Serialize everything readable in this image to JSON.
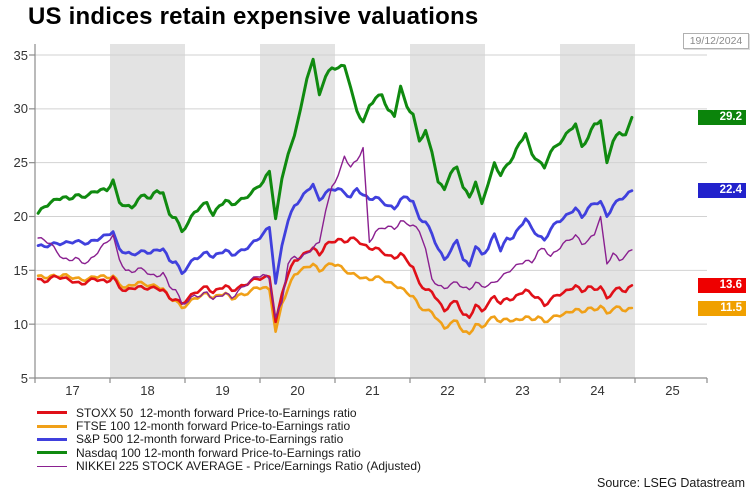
{
  "title": "US indices retain expensive valuations",
  "date_badge": "19/12/2024",
  "source": "Source: LSEG Datastream",
  "colors": {
    "band_fill": "#e3e3e3",
    "gridline": "#d2d2d2",
    "axis": "#8c8c8c",
    "title_text": "#000000",
    "tick_text": "#333333"
  },
  "legend": {
    "items": [
      {
        "label": "STOXX 50  12-month forward Price-to-Earnings ratio"
      },
      {
        "label": "FTSE 100 12-month forward Price-to-Earnings ratio"
      },
      {
        "label": "S&P 500 12-month forward Price-to-Earnings ratio"
      },
      {
        "label": "Nasdaq 100 12-month forward Price-to-Earnings ratio"
      },
      {
        "label": "NIKKEI 225 STOCK AVERAGE - Price/Earnings Ratio (Adjusted)"
      }
    ]
  },
  "chart_data": {
    "type": "line",
    "x_unit": "decimal_year_monthly_from_2017-01_to_2024-12",
    "x_start_year": 2017,
    "x_end_axis_year": 2026,
    "ylim": [
      5,
      35
    ],
    "y_ticks": [
      35,
      30,
      25,
      20,
      15,
      10,
      5
    ],
    "x_tick_labels": [
      "17",
      "18",
      "19",
      "20",
      "21",
      "22",
      "23",
      "24",
      "25"
    ],
    "shaded_year_bands": [
      2018,
      2020,
      2022,
      2024
    ],
    "grid": true,
    "legend_position": "bottom-left",
    "series": [
      {
        "name": "FTSE 100",
        "color": "#f0a018",
        "line_width": 2.6,
        "end_label": "11.5",
        "end_label_color": "#f0a000",
        "values": [
          14.5,
          14.3,
          14.5,
          14.4,
          14.6,
          14.4,
          14.3,
          14.1,
          14.2,
          14.4,
          14.5,
          14.3,
          14.5,
          13.7,
          13.4,
          13.6,
          13.9,
          13.7,
          13.6,
          13.5,
          13.3,
          12.4,
          12.2,
          11.5,
          11.9,
          12.4,
          12.6,
          12.9,
          12.4,
          12.7,
          12.9,
          12.3,
          12.7,
          12.7,
          13.1,
          13.4,
          13.4,
          13.2,
          9.3,
          11.9,
          13.3,
          14.6,
          15.0,
          15.3,
          15.6,
          14.9,
          15.4,
          15.6,
          15.5,
          15.0,
          14.7,
          14.5,
          14.3,
          14.1,
          14.4,
          14.2,
          13.9,
          13.6,
          13.4,
          12.9,
          12.6,
          11.6,
          11.3,
          11.1,
          10.4,
          9.6,
          10.1,
          10.3,
          9.3,
          9.1,
          10.0,
          9.7,
          10.3,
          10.7,
          10.2,
          10.5,
          10.3,
          10.4,
          10.7,
          10.4,
          10.7,
          10.2,
          10.5,
          10.8,
          10.9,
          11.1,
          11.4,
          11.1,
          11.5,
          11.3,
          11.7,
          11.0,
          11.4,
          11.6,
          11.2,
          11.5
        ]
      },
      {
        "name": "STOXX 50",
        "color": "#e01018",
        "line_width": 2.6,
        "end_label": "13.6",
        "end_label_color": "#ee0000",
        "values": [
          14.2,
          13.9,
          14.3,
          14.4,
          14.3,
          14.1,
          13.9,
          13.7,
          14.0,
          14.2,
          14.1,
          13.9,
          14.4,
          13.4,
          13.1,
          13.3,
          13.5,
          13.3,
          13.4,
          13.3,
          13.2,
          12.4,
          12.3,
          11.9,
          12.4,
          12.9,
          13.2,
          13.5,
          12.9,
          13.3,
          13.6,
          13.1,
          13.4,
          13.6,
          14.0,
          14.2,
          14.3,
          14.4,
          10.2,
          12.8,
          14.6,
          15.9,
          16.2,
          16.7,
          17.1,
          16.4,
          17.4,
          17.6,
          17.9,
          17.6,
          18.0,
          17.8,
          17.4,
          17.0,
          17.1,
          16.7,
          16.4,
          16.1,
          16.6,
          15.9,
          15.3,
          13.8,
          13.2,
          13.0,
          12.2,
          11.2,
          11.9,
          12.1,
          10.9,
          10.6,
          11.8,
          11.2,
          11.9,
          12.6,
          11.9,
          12.4,
          12.3,
          12.8,
          13.2,
          12.7,
          12.5,
          11.7,
          12.3,
          12.7,
          12.9,
          13.2,
          13.6,
          13.0,
          13.5,
          13.2,
          13.5,
          12.4,
          13.0,
          13.4,
          13.0,
          13.6
        ]
      },
      {
        "name": "S&P 500",
        "color": "#4040dd",
        "line_width": 2.8,
        "end_label": "22.4",
        "end_label_color": "#2222cc",
        "values": [
          17.3,
          17.2,
          17.4,
          17.5,
          17.5,
          17.6,
          17.7,
          17.6,
          17.5,
          17.8,
          18.0,
          18.3,
          18.6,
          17.0,
          16.6,
          16.5,
          16.6,
          16.8,
          16.6,
          16.9,
          17.0,
          15.9,
          15.8,
          14.7,
          15.4,
          16.1,
          16.3,
          16.7,
          16.2,
          16.6,
          16.9,
          16.4,
          16.7,
          16.9,
          17.4,
          17.8,
          18.4,
          19.0,
          13.8,
          17.3,
          19.6,
          21.0,
          21.6,
          22.4,
          23.0,
          21.5,
          22.2,
          22.5,
          22.6,
          22.2,
          21.8,
          22.6,
          22.0,
          21.6,
          21.8,
          21.4,
          21.0,
          20.7,
          21.6,
          21.8,
          21.4,
          19.8,
          19.5,
          18.4,
          17.0,
          16.0,
          16.8,
          17.8,
          16.0,
          15.4,
          17.2,
          16.5,
          17.0,
          18.4,
          16.8,
          18.0,
          18.0,
          19.0,
          19.8,
          18.9,
          18.2,
          17.8,
          18.8,
          19.5,
          19.8,
          20.3,
          20.8,
          19.9,
          20.8,
          21.2,
          21.4,
          20.0,
          21.0,
          21.6,
          21.9,
          22.4
        ]
      },
      {
        "name": "Nasdaq 100",
        "color": "#108a10",
        "line_width": 3.0,
        "end_label": "29.2",
        "end_label_color": "#0b840b",
        "values": [
          20.3,
          20.9,
          21.3,
          21.6,
          21.8,
          21.6,
          22.0,
          21.8,
          22.0,
          22.3,
          22.5,
          22.4,
          23.4,
          21.3,
          21.0,
          20.8,
          21.6,
          22.0,
          21.7,
          22.4,
          22.2,
          20.2,
          19.9,
          18.6,
          19.4,
          20.4,
          20.9,
          21.3,
          20.1,
          21.0,
          21.5,
          21.1,
          21.4,
          21.7,
          22.1,
          22.7,
          23.2,
          24.2,
          19.8,
          23.5,
          25.8,
          27.5,
          30.0,
          32.8,
          34.6,
          31.3,
          33.0,
          33.8,
          33.8,
          34.0,
          32.0,
          29.8,
          28.8,
          30.3,
          31.0,
          31.3,
          29.9,
          29.3,
          32.1,
          30.2,
          29.5,
          27.0,
          28.0,
          26.0,
          23.2,
          22.5,
          24.0,
          24.6,
          22.7,
          21.8,
          23.2,
          21.2,
          23.0,
          25.0,
          23.8,
          24.8,
          25.5,
          26.8,
          27.7,
          25.8,
          25.2,
          24.5,
          26.0,
          26.6,
          27.2,
          28.0,
          28.6,
          26.5,
          27.3,
          28.6,
          28.9,
          25.0,
          27.0,
          27.8,
          27.6,
          29.2
        ]
      },
      {
        "name": "NIKKEI 225",
        "color": "#8a2090",
        "line_width": 1.4,
        "end_label": null,
        "end_label_color": null,
        "values": [
          18.0,
          17.8,
          17.5,
          16.7,
          16.1,
          15.9,
          16.2,
          15.7,
          15.8,
          16.3,
          17.1,
          17.6,
          18.3,
          16.0,
          15.0,
          14.8,
          15.2,
          15.0,
          14.6,
          14.4,
          14.8,
          13.5,
          13.2,
          11.9,
          12.1,
          12.7,
          12.6,
          13.0,
          12.3,
          12.6,
          12.9,
          12.4,
          13.1,
          13.5,
          14.1,
          14.4,
          14.6,
          14.2,
          10.6,
          12.0,
          15.6,
          16.3,
          16.1,
          16.6,
          17.1,
          17.6,
          20.5,
          22.8,
          23.8,
          25.6,
          24.6,
          25.2,
          26.4,
          17.6,
          18.6,
          18.9,
          19.1,
          18.8,
          19.6,
          19.3,
          19.2,
          18.6,
          17.0,
          14.2,
          13.6,
          13.3,
          13.7,
          13.9,
          13.4,
          13.2,
          13.9,
          13.5,
          13.6,
          13.9,
          14.3,
          14.8,
          15.2,
          15.6,
          15.9,
          15.7,
          16.8,
          17.0,
          16.3,
          16.8,
          17.5,
          17.8,
          18.3,
          17.4,
          17.8,
          18.3,
          20.0,
          15.6,
          16.6,
          15.9,
          16.4,
          16.9
        ]
      }
    ]
  }
}
